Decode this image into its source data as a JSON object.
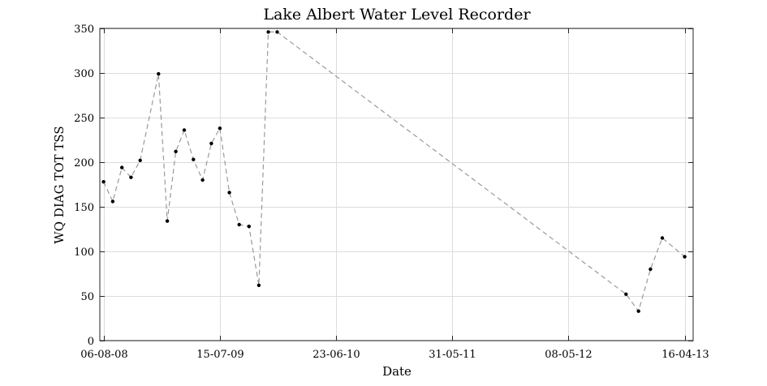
{
  "chart_data": {
    "type": "line",
    "title": "Lake Albert Water Level Recorder",
    "xlabel": "Date",
    "ylabel": "WQ DIAG TOT TSS",
    "x_scale": "date",
    "xlim": [
      "2008-07-26",
      "2013-05-11"
    ],
    "ylim": [
      0,
      350
    ],
    "x_ticks": [
      "06-08-08",
      "15-07-09",
      "23-06-10",
      "31-05-11",
      "08-05-12",
      "16-04-13"
    ],
    "y_ticks": [
      "0",
      "50",
      "100",
      "150",
      "200",
      "250",
      "300",
      "350"
    ],
    "grid": true,
    "line_style": "dashed",
    "line_color": "#9a9a9a",
    "marker_color": "#000000",
    "series": [
      {
        "x": [
          "2008-08-06",
          "2008-09-02",
          "2008-09-29",
          "2008-10-26",
          "2008-11-22",
          "2009-01-15",
          "2009-02-10",
          "2009-03-07",
          "2009-04-01",
          "2009-04-28",
          "2009-05-25",
          "2009-06-20",
          "2009-07-15",
          "2009-08-12",
          "2009-09-10",
          "2009-10-09",
          "2009-11-07",
          "2009-12-05",
          "2009-12-31",
          "2012-10-25",
          "2012-12-01",
          "2013-01-05",
          "2013-02-09",
          "2013-04-16"
        ],
        "y": [
          178,
          156,
          194,
          183,
          202,
          299,
          134,
          212,
          236,
          203,
          180,
          221,
          238,
          166,
          130,
          128,
          62,
          346,
          346,
          52,
          33,
          80,
          115,
          94
        ]
      }
    ]
  }
}
